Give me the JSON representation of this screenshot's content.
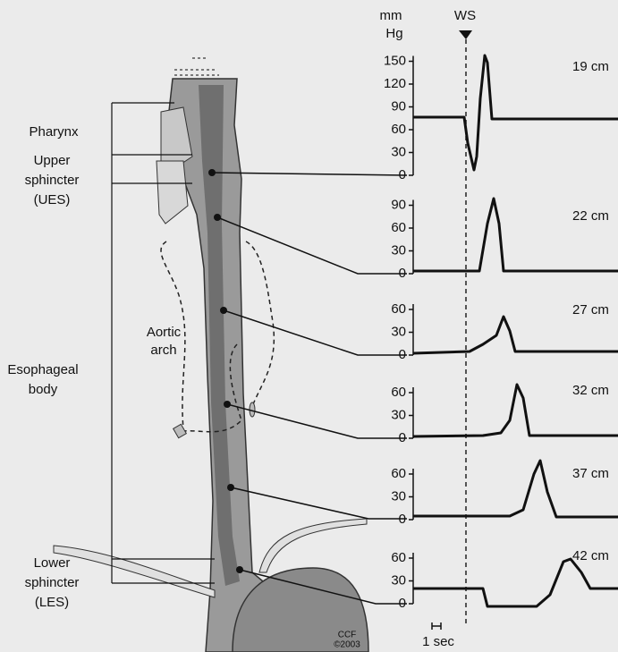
{
  "header": {
    "units": [
      "mm",
      "Hg"
    ],
    "marker": "WS"
  },
  "labels": {
    "pharynx": "Pharynx",
    "upper_sphincter": [
      "Upper",
      "sphincter",
      "(UES)"
    ],
    "aortic_arch": [
      "Aortic",
      "arch"
    ],
    "esophageal_body": [
      "Esophageal",
      "body"
    ],
    "lower_sphincter": [
      "Lower",
      "sphincter",
      "(LES)"
    ]
  },
  "panels": [
    {
      "depth": "19 cm",
      "yticks": [
        150,
        120,
        90,
        60,
        30,
        0
      ]
    },
    {
      "depth": "22 cm",
      "yticks": [
        90,
        60,
        30,
        0
      ]
    },
    {
      "depth": "27 cm",
      "yticks": [
        60,
        30,
        0
      ]
    },
    {
      "depth": "32 cm",
      "yticks": [
        60,
        30,
        0
      ]
    },
    {
      "depth": "37 cm",
      "yticks": [
        60,
        30,
        0
      ]
    },
    {
      "depth": "42 cm",
      "yticks": [
        60,
        30,
        0
      ]
    }
  ],
  "time_scale": "1 sec",
  "credit": [
    "CCF",
    "©2003"
  ]
}
